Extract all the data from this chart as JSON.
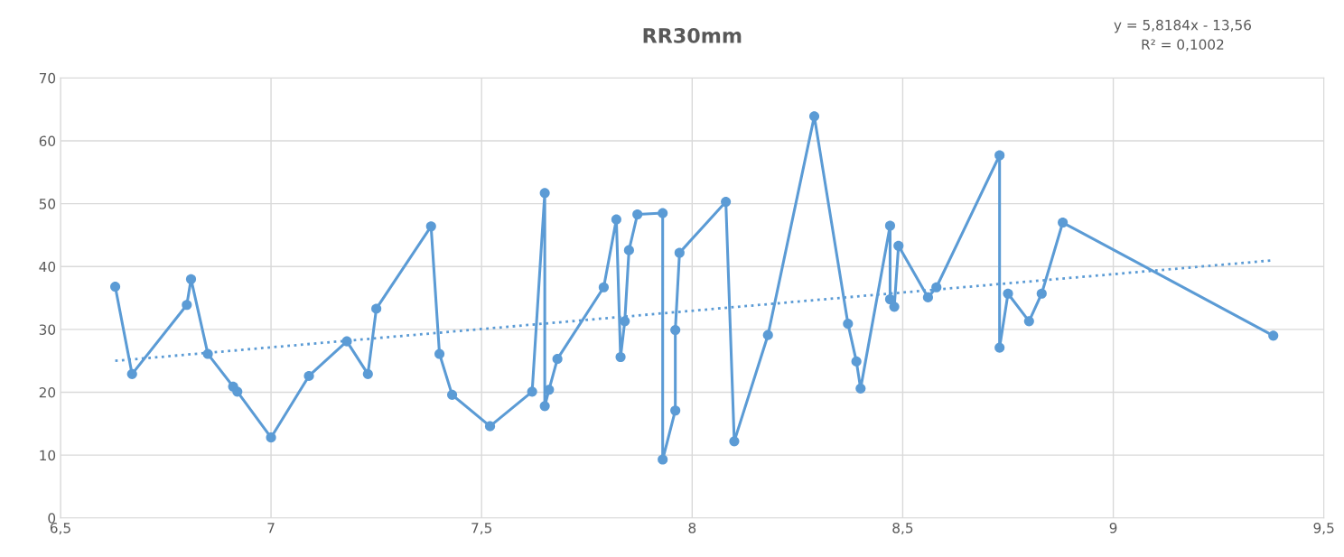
{
  "chart_data": {
    "type": "line",
    "title": "RR30mm",
    "annotations": [
      "y = 5,8184x - 13,56",
      "R² = 0,1002"
    ],
    "xlim": [
      6.5,
      9.5
    ],
    "xticks": [
      {
        "value": 6.5,
        "label": "6,5"
      },
      7,
      {
        "value": 7.5,
        "label": "7,5"
      },
      8,
      {
        "value": 8.5,
        "label": "8,5"
      },
      9,
      {
        "value": 9.5,
        "label": "9,5"
      }
    ],
    "ylim": [
      0,
      70
    ],
    "yticks": [
      0,
      10,
      20,
      30,
      40,
      50,
      60,
      70
    ],
    "grid": true,
    "series": [
      {
        "color": "#5b9bd5",
        "marker": "circle",
        "line_style": "solid",
        "x": [
          6.63,
          6.67,
          6.8,
          6.81,
          6.85,
          6.91,
          6.92,
          7.0,
          7.09,
          7.18,
          7.23,
          7.25,
          7.38,
          7.4,
          7.43,
          7.52,
          7.62,
          7.65,
          7.65,
          7.66,
          7.68,
          7.79,
          7.82,
          7.83,
          7.84,
          7.85,
          7.87,
          7.93,
          7.93,
          7.96,
          7.96,
          7.97,
          8.08,
          8.1,
          8.18,
          8.29,
          8.37,
          8.39,
          8.4,
          8.47,
          8.47,
          8.48,
          8.49,
          8.56,
          8.58,
          8.73,
          8.73,
          8.75,
          8.8,
          8.83,
          8.88,
          9.38
        ],
        "values": [
          36.8,
          22.9,
          33.9,
          38.0,
          26.1,
          20.9,
          20.1,
          12.8,
          22.6,
          28.1,
          22.9,
          33.3,
          46.4,
          26.1,
          19.6,
          14.6,
          20.1,
          51.7,
          17.8,
          20.4,
          25.3,
          36.7,
          47.5,
          25.6,
          31.3,
          42.6,
          48.3,
          48.5,
          9.3,
          17.1,
          29.9,
          42.2,
          50.3,
          12.2,
          29.1,
          63.9,
          30.9,
          24.9,
          20.6,
          46.5,
          34.8,
          33.6,
          43.3,
          35.1,
          36.7,
          57.7,
          27.1,
          35.7,
          31.3,
          35.7,
          47.0,
          29.0
        ]
      },
      {
        "color": "#5b9bd5",
        "marker": "none",
        "line_style": "dotted",
        "x": [
          6.63,
          9.38
        ],
        "values": [
          25.0,
          41.0
        ]
      }
    ]
  }
}
